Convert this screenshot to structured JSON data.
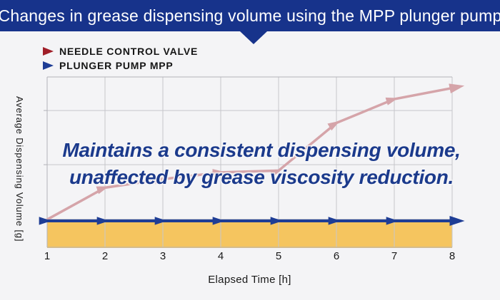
{
  "header": {
    "title": "Changes in grease dispensing volume using the MPP plunger pump",
    "background_color": "#17338b"
  },
  "legend": {
    "items": [
      {
        "label": "NEEDLE CONTROL VALVE",
        "color": "#a01e28"
      },
      {
        "label": "PLUNGER PUMP MPP",
        "color": "#1e3d95"
      }
    ]
  },
  "chart_data": {
    "type": "line",
    "xlabel": "Elapsed Time [h]",
    "ylabel": "Average Dispensing Volume [g]",
    "x_ticks": [
      "1",
      "2",
      "3",
      "4",
      "5",
      "6",
      "7",
      "8"
    ],
    "y_axis_note": "no numeric y tick labels shown; values are normalized 0-1 of plot height",
    "grid": true,
    "series": [
      {
        "name": "NEEDLE CONTROL VALVE",
        "color": "#d5a4a9",
        "marker": "arrow",
        "trend": "rising",
        "values_norm": [
          0.163,
          0.35,
          0.4,
          0.44,
          0.45,
          0.73,
          0.87,
          0.935
        ]
      },
      {
        "name": "PLUNGER PUMP MPP",
        "color": "#1e3d95",
        "marker": "arrow",
        "trend": "constant",
        "band_fill": "#f5c55f",
        "values_norm": [
          0.155,
          0.155,
          0.155,
          0.155,
          0.155,
          0.155,
          0.155,
          0.155
        ]
      }
    ],
    "annotation": {
      "line1": "Maintains a consistent dispensing volume,",
      "line2": "unaffected by grease viscosity reduction.",
      "color": "#1b3a8c"
    }
  }
}
